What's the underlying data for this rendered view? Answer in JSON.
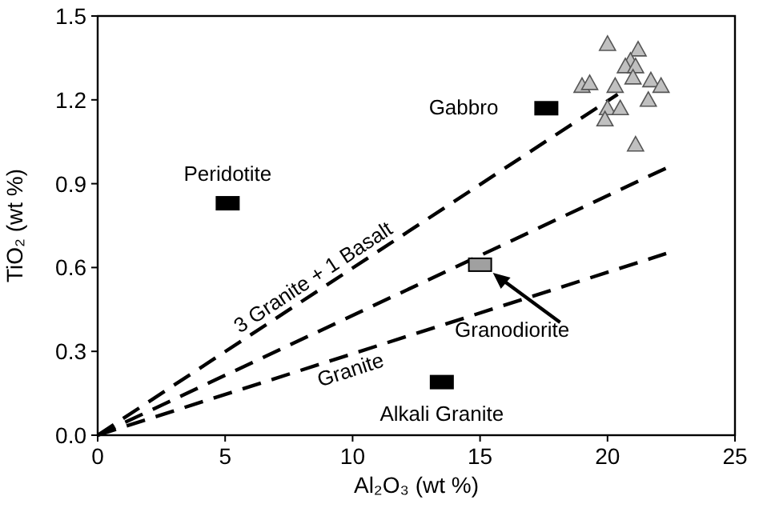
{
  "chart_data": {
    "type": "scatter",
    "xlabel": "Al₂O₃ (wt %)",
    "ylabel": "TiO₂ (wt %)",
    "xlim": [
      0,
      25
    ],
    "xticks": [
      0,
      5,
      10,
      15,
      20,
      25
    ],
    "ylim": [
      0,
      1.5
    ],
    "yticks": [
      {
        "value": 0,
        "label": "0.0"
      },
      {
        "value": 0.3,
        "label": "0.3"
      },
      {
        "value": 0.6,
        "label": "0.6"
      },
      {
        "value": 0.9,
        "label": "0.9"
      },
      {
        "value": 1.2,
        "label": "1.2"
      },
      {
        "value": 1.5,
        "label": "1.5"
      }
    ],
    "grid": false,
    "series": [
      {
        "type": "line",
        "line_style": "dashed",
        "marker": "none",
        "color": "#000000",
        "x": [
          0,
          20.4
        ],
        "values": [
          0,
          1.22
        ]
      },
      {
        "type": "line",
        "line_style": "dashed",
        "marker": "none",
        "color": "#000000",
        "x": [
          0,
          22.4
        ],
        "values": [
          0,
          0.96
        ]
      },
      {
        "type": "line",
        "line_style": "dashed",
        "marker": "none",
        "color": "#000000",
        "x": [
          0,
          22.3
        ],
        "values": [
          0,
          0.65
        ]
      },
      {
        "marker": "square",
        "color": "#000000",
        "x": [
          17.6,
          5.1,
          13.5
        ],
        "values": [
          1.17,
          0.83,
          0.19
        ]
      },
      {
        "marker": "square",
        "color": "#a0a0a0",
        "x": [
          15.0
        ],
        "values": [
          0.61
        ]
      },
      {
        "marker": "triangle",
        "color": "#c0c0c0",
        "x": [
          20.0,
          21.2,
          20.9,
          20.7,
          21.1,
          21.0,
          19.0,
          19.3,
          20.3,
          21.7,
          22.1,
          21.6,
          20.0,
          20.5,
          19.9,
          21.1
        ],
        "values": [
          1.4,
          1.38,
          1.34,
          1.32,
          1.32,
          1.28,
          1.25,
          1.26,
          1.25,
          1.27,
          1.25,
          1.2,
          1.17,
          1.17,
          1.13,
          1.04
        ]
      }
    ],
    "annotations": [
      {
        "text": "Gabbro",
        "x": 17.6,
        "y": 1.17
      },
      {
        "text": "Peridotite",
        "x": 5.1,
        "y": 0.83
      },
      {
        "text": "Granodiorite",
        "x": 15.0,
        "y": 0.61
      },
      {
        "text": "Alkali Granite",
        "x": 13.5,
        "y": 0.19
      },
      {
        "text": "3 Granite + 1 Basalt",
        "x": 8.6,
        "y": 0.51
      },
      {
        "text": "Granite",
        "x": 10.0,
        "y": 0.29
      }
    ]
  }
}
